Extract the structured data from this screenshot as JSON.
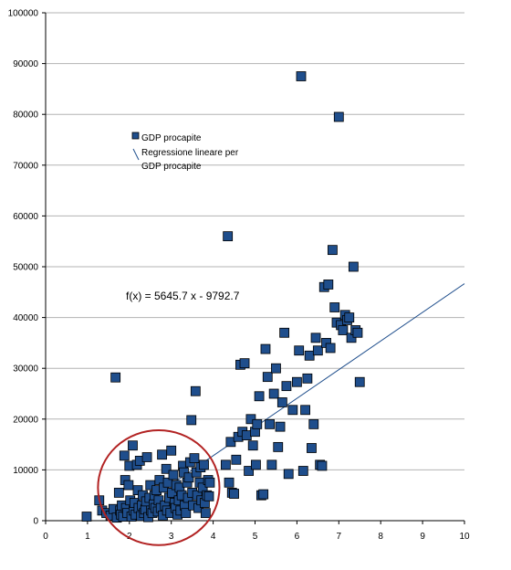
{
  "chart_data": {
    "type": "scatter",
    "title": "",
    "xlabel": "",
    "ylabel": "",
    "xlim": [
      0,
      10
    ],
    "ylim": [
      0,
      100000
    ],
    "x_ticks": [
      "0",
      "1",
      "2",
      "3",
      "4",
      "5",
      "6",
      "7",
      "8",
      "9",
      "10"
    ],
    "y_ticks": [
      "0",
      "10000",
      "20000",
      "30000",
      "40000",
      "50000",
      "60000",
      "70000",
      "80000",
      "90000",
      "100000"
    ],
    "grid": "horizontal",
    "legend": {
      "placement": "top-left",
      "entries": [
        "GDP procapite",
        "Regressione lineare per",
        "GDP procapite"
      ]
    },
    "equation_label": "f(x) = 5645.7 x - 9792.7",
    "regression": {
      "slope": 5645.7,
      "intercept": -9792.7,
      "x_range": [
        1.73,
        10
      ]
    },
    "circle_annotation": {
      "cx": 2.7,
      "cy": 6500,
      "rx": 1.45,
      "ry": 11300
    },
    "colors": {
      "marker": "#1f4e8c",
      "marker_edge": "#000000",
      "trend": "#1f4e8c",
      "circle": "#b22222",
      "grid": "#b3b3b3"
    },
    "series": [
      {
        "name": "GDP procapite",
        "points": [
          [
            0.98,
            800
          ],
          [
            1.28,
            4000
          ],
          [
            1.35,
            2000
          ],
          [
            1.45,
            1500
          ],
          [
            1.55,
            1000
          ],
          [
            1.62,
            2300
          ],
          [
            1.67,
            28200
          ],
          [
            1.7,
            600
          ],
          [
            1.75,
            5500
          ],
          [
            1.78,
            2000
          ],
          [
            1.8,
            1200
          ],
          [
            1.82,
            3000
          ],
          [
            1.85,
            800
          ],
          [
            1.88,
            12800
          ],
          [
            1.9,
            8000
          ],
          [
            1.92,
            2500
          ],
          [
            1.95,
            1500
          ],
          [
            1.98,
            7000
          ],
          [
            2.0,
            10800
          ],
          [
            2.02,
            4000
          ],
          [
            2.05,
            800
          ],
          [
            2.08,
            14800
          ],
          [
            2.1,
            2000
          ],
          [
            2.12,
            3500
          ],
          [
            2.15,
            1200
          ],
          [
            2.18,
            11000
          ],
          [
            2.2,
            6000
          ],
          [
            2.22,
            2500
          ],
          [
            2.25,
            11800
          ],
          [
            2.28,
            900
          ],
          [
            2.3,
            3000
          ],
          [
            2.32,
            5000
          ],
          [
            2.35,
            1500
          ],
          [
            2.38,
            2200
          ],
          [
            2.4,
            3800
          ],
          [
            2.42,
            12500
          ],
          [
            2.45,
            700
          ],
          [
            2.48,
            4500
          ],
          [
            2.5,
            7000
          ],
          [
            2.52,
            2000
          ],
          [
            2.55,
            1500
          ],
          [
            2.58,
            3200
          ],
          [
            2.6,
            5000
          ],
          [
            2.62,
            2500
          ],
          [
            2.65,
            6000
          ],
          [
            2.68,
            1800
          ],
          [
            2.7,
            4000
          ],
          [
            2.72,
            8000
          ],
          [
            2.75,
            2500
          ],
          [
            2.78,
            13000
          ],
          [
            2.8,
            1000
          ],
          [
            2.82,
            6500
          ],
          [
            2.85,
            3000
          ],
          [
            2.88,
            10200
          ],
          [
            2.9,
            2000
          ],
          [
            2.92,
            7500
          ],
          [
            2.95,
            4500
          ],
          [
            2.98,
            1500
          ],
          [
            3.0,
            13800
          ],
          [
            3.02,
            5500
          ],
          [
            3.05,
            9000
          ],
          [
            3.08,
            3500
          ],
          [
            3.1,
            2500
          ],
          [
            3.12,
            7000
          ],
          [
            3.15,
            1200
          ],
          [
            3.18,
            4000
          ],
          [
            3.2,
            6500
          ],
          [
            3.22,
            2000
          ],
          [
            3.25,
            5000
          ],
          [
            3.28,
            10800
          ],
          [
            3.3,
            9500
          ],
          [
            3.32,
            3000
          ],
          [
            3.35,
            1500
          ],
          [
            3.38,
            7500
          ],
          [
            3.4,
            4500
          ],
          [
            3.42,
            8500
          ],
          [
            3.45,
            11500
          ],
          [
            3.48,
            19800
          ],
          [
            3.5,
            5500
          ],
          [
            3.52,
            3000
          ],
          [
            3.55,
            12300
          ],
          [
            3.58,
            25500
          ],
          [
            3.6,
            9500
          ],
          [
            3.62,
            5000
          ],
          [
            3.65,
            2500
          ],
          [
            3.68,
            7500
          ],
          [
            3.7,
            10500
          ],
          [
            3.72,
            4000
          ],
          [
            3.75,
            6500
          ],
          [
            3.78,
            11000
          ],
          [
            3.8,
            3500
          ],
          [
            3.82,
            1500
          ],
          [
            3.85,
            5000
          ],
          [
            3.88,
            8000
          ],
          [
            3.9,
            4800
          ],
          [
            3.92,
            7500
          ],
          [
            4.3,
            11000
          ],
          [
            4.35,
            56000
          ],
          [
            4.38,
            7500
          ],
          [
            4.42,
            15500
          ],
          [
            4.45,
            5500
          ],
          [
            4.5,
            5300
          ],
          [
            4.55,
            12000
          ],
          [
            4.6,
            16500
          ],
          [
            4.65,
            30700
          ],
          [
            4.7,
            17500
          ],
          [
            4.75,
            31000
          ],
          [
            4.8,
            16800
          ],
          [
            4.85,
            9800
          ],
          [
            4.9,
            20000
          ],
          [
            4.95,
            14800
          ],
          [
            5.0,
            17500
          ],
          [
            5.02,
            11000
          ],
          [
            5.05,
            19000
          ],
          [
            5.1,
            24500
          ],
          [
            5.15,
            5000
          ],
          [
            5.2,
            5200
          ],
          [
            5.25,
            33800
          ],
          [
            5.3,
            28300
          ],
          [
            5.35,
            19000
          ],
          [
            5.4,
            11000
          ],
          [
            5.45,
            25000
          ],
          [
            5.5,
            30000
          ],
          [
            5.55,
            14500
          ],
          [
            5.6,
            18500
          ],
          [
            5.65,
            23300
          ],
          [
            5.7,
            37000
          ],
          [
            5.75,
            26500
          ],
          [
            5.8,
            9200
          ],
          [
            5.9,
            21800
          ],
          [
            6.0,
            27300
          ],
          [
            6.05,
            33500
          ],
          [
            6.1,
            87500
          ],
          [
            6.15,
            9800
          ],
          [
            6.2,
            21800
          ],
          [
            6.25,
            28000
          ],
          [
            6.3,
            32500
          ],
          [
            6.35,
            14300
          ],
          [
            6.4,
            19000
          ],
          [
            6.45,
            36000
          ],
          [
            6.5,
            33500
          ],
          [
            6.55,
            11000
          ],
          [
            6.6,
            10800
          ],
          [
            6.65,
            46000
          ],
          [
            6.7,
            35000
          ],
          [
            6.75,
            46500
          ],
          [
            6.8,
            34000
          ],
          [
            6.85,
            53300
          ],
          [
            6.9,
            42000
          ],
          [
            6.95,
            39000
          ],
          [
            7.0,
            79500
          ],
          [
            7.05,
            38500
          ],
          [
            7.1,
            37500
          ],
          [
            7.15,
            40500
          ],
          [
            7.2,
            39500
          ],
          [
            7.25,
            40000
          ],
          [
            7.3,
            36000
          ],
          [
            7.35,
            50000
          ],
          [
            7.4,
            37500
          ],
          [
            7.45,
            37000
          ],
          [
            7.5,
            27300
          ]
        ]
      }
    ]
  }
}
